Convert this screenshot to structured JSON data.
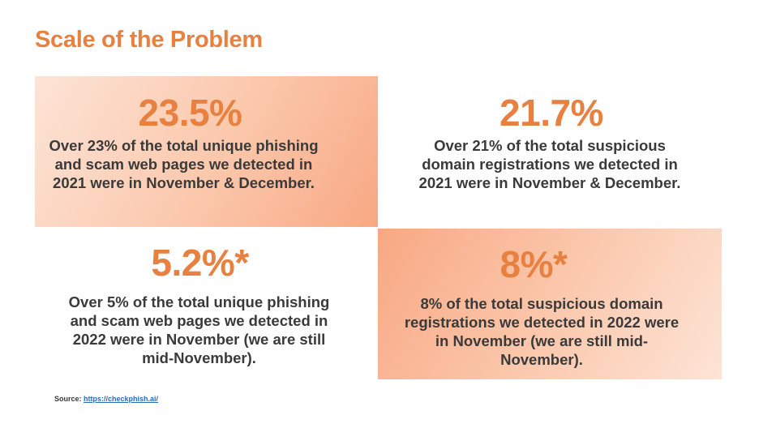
{
  "title": "Scale of the Problem",
  "cards": [
    {
      "stat": "23.5%",
      "lines": [
        "Over 23% of the total unique phishing",
        "and scam web pages we detected in",
        "2021 were in November & December."
      ]
    },
    {
      "stat": "21.7%",
      "lines": [
        "Over 21% of the total suspicious",
        "domain registrations we detected in",
        "2021 were in November & December."
      ]
    },
    {
      "stat": "5.2%*",
      "lines": [
        "Over 5% of the total unique phishing",
        "and scam web pages we detected in",
        "2022 were in November (we are still",
        "mid-November)."
      ]
    },
    {
      "stat": "8%*",
      "lines": [
        "8% of the total suspicious domain",
        "registrations we detected in 2022 were",
        "in November (we are still mid-",
        "November)."
      ]
    }
  ],
  "source": {
    "label": "Source:",
    "link_text": "https://checkphish.ai/"
  },
  "colors": {
    "accent": "#e8813f",
    "text": "#3a3a3a",
    "card_light": "#fde4d6",
    "card_dark": "#f8a883",
    "link": "#2a6bbf"
  }
}
